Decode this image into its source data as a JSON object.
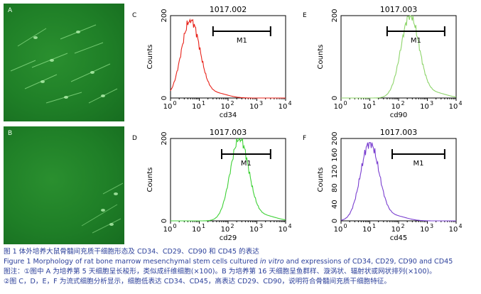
{
  "micrographs": [
    {
      "label": "A"
    },
    {
      "label": "B"
    }
  ],
  "panels": [
    {
      "letter": "C",
      "title": "1017.002",
      "xlabel": "cd34",
      "ylabel": "Counts",
      "color": "#e8231b",
      "yticks": [
        "0",
        "200"
      ],
      "gate": "M1",
      "chart_data": {
        "type": "area",
        "x_scale": "log",
        "xlim": [
          1,
          10000
        ],
        "ylim": [
          0,
          200
        ],
        "peak_x": 5,
        "peak_y": 190,
        "gate_range": [
          30,
          3000
        ]
      }
    },
    {
      "letter": "E",
      "title": "1017.003",
      "xlabel": "cd90",
      "ylabel": "Counts",
      "color": "#8dd46a",
      "yticks": [
        "0",
        "200"
      ],
      "gate": "M1",
      "chart_data": {
        "type": "area",
        "x_scale": "log",
        "xlim": [
          1,
          10000
        ],
        "ylim": [
          0,
          200
        ],
        "peak_x": 250,
        "peak_y": 200,
        "gate_range": [
          40,
          4000
        ]
      }
    },
    {
      "letter": "D",
      "title": "1017.003",
      "xlabel": "cd29",
      "ylabel": "Counts",
      "color": "#3ed136",
      "yticks": [
        "0",
        "200"
      ],
      "gate": "M1",
      "chart_data": {
        "type": "area",
        "x_scale": "log",
        "xlim": [
          1,
          10000
        ],
        "ylim": [
          0,
          200
        ],
        "peak_x": 250,
        "peak_y": 200,
        "gate_range": [
          60,
          3000
        ]
      }
    },
    {
      "letter": "F",
      "title": "1017.003",
      "xlabel": "cd45",
      "ylabel": "Counts",
      "color": "#7a3fd0",
      "yticks": [
        "0",
        "40",
        "80",
        "120",
        "160",
        "200"
      ],
      "gate": "M1",
      "chart_data": {
        "type": "area",
        "x_scale": "log",
        "xlim": [
          1,
          10000
        ],
        "ylim": [
          0,
          200
        ],
        "peak_x": 10,
        "peak_y": 190,
        "gate_range": [
          60,
          4000
        ]
      }
    }
  ],
  "xtick_base": "10",
  "xtick_exps": [
    "0",
    "1",
    "2",
    "3",
    "4"
  ],
  "caption": {
    "cn_title": "图 1   体外培养大鼠骨髓间充质干细胞形态及 CD34、CD29、CD90 和 CD45 的表达",
    "en_title_pre": "Figure 1   Morphology of rat bone marrow mesenchymal stem cells cultured ",
    "en_title_it": "in vitro",
    "en_title_post": " and expressions of CD34, CD29, CD90 and CD45",
    "note1": "图注：①图中 A 为培养第 5 天细胞呈长梭形，类似成纤维细胞(×100)。B 为培养第 16 天细胞呈鱼群样、漩涡状、辐射状或网状排列(×100)。",
    "note2": "②图 C，D，E，F 为流式细胞分析显示，细胞低表达 CD34、CD45，高表达 CD29、CD90，说明符合骨髓间充质干细胞特征。"
  }
}
